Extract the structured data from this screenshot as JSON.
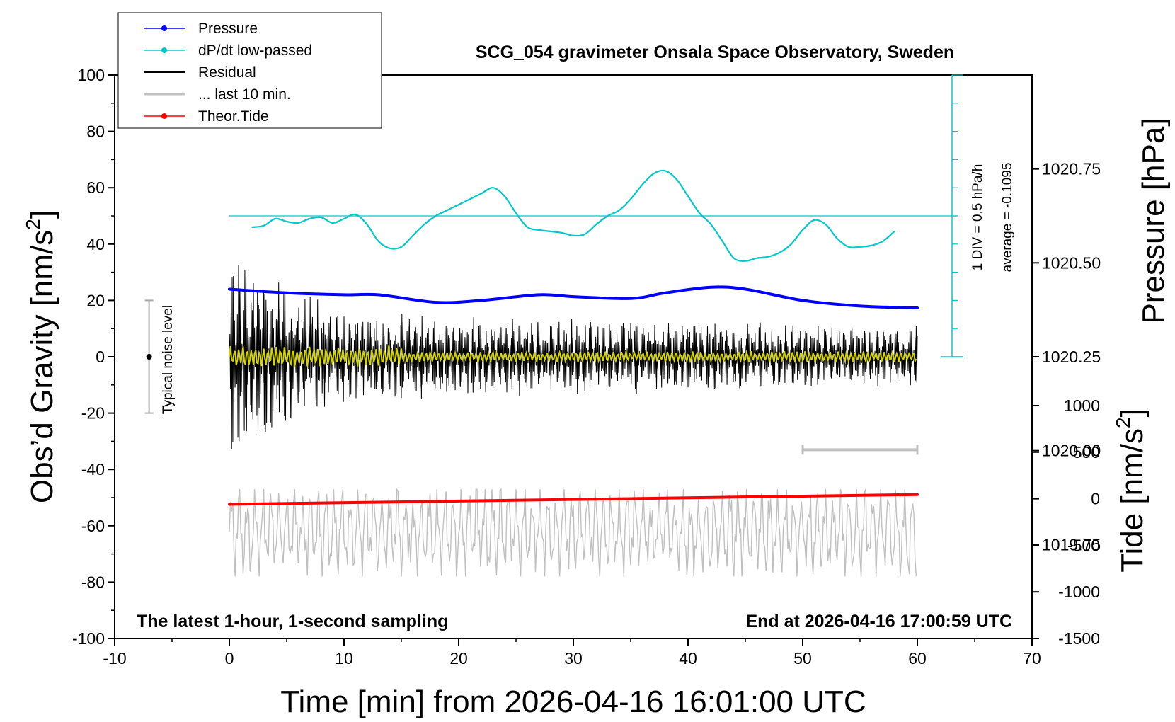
{
  "chart_data": {
    "type": "line",
    "title": "SCG_054 gravimeter Onsala Space Observatory, Sweden",
    "xlabel": "Time [min] from 2026-04-16 16:01:00 UTC",
    "ylabel_left": "Obs'd Gravity [nm/s2]",
    "ylabel_right_top": "Pressure [hPa]",
    "ylabel_right_bottom": "Tide [nm/s2]",
    "xlim": [
      -10,
      70
    ],
    "ylim": [
      -100,
      100
    ],
    "pressure_ylim": [
      1019.5,
      1021.0
    ],
    "tide_ylim": [
      -1500,
      1000
    ],
    "x_ticks": [
      "-10",
      "0",
      "10",
      "20",
      "30",
      "40",
      "50",
      "60",
      "70"
    ],
    "y_ticks": [
      "-100",
      "-80",
      "-60",
      "-40",
      "-20",
      "0",
      "20",
      "40",
      "60",
      "80",
      "100"
    ],
    "pressure_ticks": [
      "1019.75",
      "1020.00",
      "1020.25",
      "1020.50",
      "1020.75"
    ],
    "tide_ticks": [
      "-1500",
      "-1000",
      "-500",
      "0",
      "500",
      "1000"
    ],
    "note_left": "The latest 1-hour, 1-second sampling",
    "note_right": "End at 2026-04-16 17:00:59 UTC",
    "noise_label": "Typical noise level",
    "div_label": "1 DIV = 0.5 hPa/h",
    "average_label": "average = -0.1095",
    "legend": [
      {
        "label": "Pressure",
        "color": "#0000ff",
        "marker": true
      },
      {
        "label": "dP/dt low-passed",
        "color": "#00c8c8",
        "marker": true
      },
      {
        "label": "Residual",
        "color": "#000000",
        "marker": false
      },
      {
        "label": "... last 10 min.",
        "color": "#c0c0c0",
        "marker": false
      },
      {
        "label": "Theor.Tide",
        "color": "#ff0000",
        "marker": true
      }
    ],
    "series": [
      {
        "name": "Pressure",
        "color": "#0000ff",
        "axis": "pressure",
        "x": [
          0,
          5,
          10,
          13,
          18,
          22,
          27,
          30,
          35,
          38,
          42,
          45,
          50,
          55,
          60
        ],
        "y": [
          1020.43,
          1020.42,
          1020.415,
          1020.415,
          1020.395,
          1020.4,
          1020.415,
          1020.41,
          1020.405,
          1020.42,
          1020.435,
          1020.43,
          1020.4,
          1020.385,
          1020.38
        ]
      },
      {
        "name": "dP/dt low-passed",
        "color": "#00c8c8",
        "axis": "gravity",
        "x": [
          2,
          3,
          4,
          5,
          6,
          7,
          8,
          9,
          10,
          11,
          12,
          13,
          14,
          15,
          16,
          17,
          18,
          19,
          20,
          21,
          22,
          23,
          24,
          25,
          26,
          27,
          28,
          29,
          30,
          31,
          32,
          33,
          34,
          35,
          36,
          37,
          38,
          39,
          40,
          41,
          42,
          43,
          44,
          45,
          46,
          47,
          48,
          49,
          50,
          51,
          52,
          53,
          54,
          55,
          56,
          57,
          58
        ],
        "y": [
          46,
          46.5,
          49,
          48,
          47.5,
          49,
          49.5,
          47.5,
          49,
          50.5,
          47,
          41,
          38.5,
          39,
          43,
          47,
          50,
          52,
          54,
          56,
          58,
          60,
          57,
          51,
          46,
          45,
          44.5,
          44,
          43,
          43.5,
          47,
          50,
          52,
          56,
          61,
          65,
          66,
          63,
          57,
          51,
          47,
          41,
          35,
          34,
          35,
          35.5,
          37,
          40,
          45,
          48.5,
          47,
          42,
          39,
          39,
          39.5,
          41,
          44.5
        ]
      },
      {
        "name": "Theor.Tide",
        "color": "#ff0000",
        "axis": "tide",
        "x": [
          0,
          20,
          40,
          60
        ],
        "y": [
          -60,
          -25,
          10,
          45
        ]
      }
    ],
    "residual_note": "Residual (black) oscillates around 0 nm/s2 with amplitude ~ +/-40 early, ~ +/-12 late; last 10 min (yellow) oscillates within +/-4 nm/s2. Gray trace (~ -60 nm/s2 band) is a shifted copy.",
    "grey_bar_x": [
      50,
      60
    ],
    "grey_bar_y": -33,
    "noise_bar_x": -7,
    "noise_bar_y": [
      -20,
      20
    ],
    "zero_line_y": 50
  }
}
